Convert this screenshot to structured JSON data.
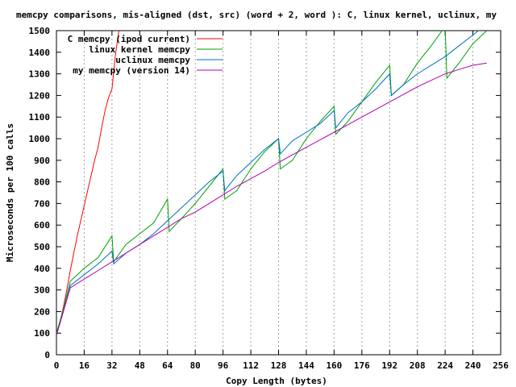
{
  "chart_data": {
    "type": "line",
    "title": "memcpy comparisons, mis-aligned (dst, src) (word + 2, word ): C, linux kernel, uclinux, my",
    "xlabel": "Copy Length (bytes)",
    "ylabel": "Microseconds per 100 calls",
    "xlim": [
      0,
      256
    ],
    "ylim": [
      0,
      1500
    ],
    "x_ticks": [
      0,
      16,
      32,
      48,
      64,
      80,
      96,
      112,
      128,
      144,
      160,
      176,
      192,
      208,
      224,
      240,
      256
    ],
    "y_ticks": [
      0,
      100,
      200,
      300,
      400,
      500,
      600,
      700,
      800,
      900,
      1000,
      1100,
      1200,
      1300,
      1400,
      1500
    ],
    "grid": "vertical dotted",
    "legend_position": "top-left",
    "series": [
      {
        "name": "C memcpy (ipod current)",
        "color": "#ff0000",
        "x": [
          0,
          2,
          4,
          6,
          8,
          10,
          12,
          14,
          16,
          18,
          20,
          22,
          24,
          26,
          28,
          30,
          32,
          34,
          36
        ],
        "y": [
          90,
          150,
          220,
          300,
          390,
          470,
          550,
          620,
          690,
          760,
          830,
          900,
          960,
          1050,
          1130,
          1190,
          1230,
          1390,
          1500
        ]
      },
      {
        "name": "linux kernel memcpy",
        "color": "#00a000",
        "x": [
          0,
          4,
          8,
          16,
          24,
          32,
          33,
          40,
          48,
          56,
          64,
          65,
          72,
          80,
          88,
          96,
          97,
          104,
          112,
          120,
          128,
          129,
          136,
          144,
          152,
          160,
          161,
          168,
          176,
          184,
          192,
          193,
          200,
          208,
          216,
          224,
          225,
          232,
          240,
          248
        ],
        "y": [
          100,
          210,
          340,
          400,
          450,
          550,
          430,
          510,
          560,
          610,
          720,
          570,
          630,
          700,
          780,
          860,
          720,
          760,
          860,
          940,
          1000,
          860,
          900,
          1000,
          1080,
          1150,
          1020,
          1080,
          1170,
          1260,
          1340,
          1200,
          1250,
          1350,
          1430,
          1520,
          1280,
          1350,
          1440,
          1500
        ]
      },
      {
        "name": "uclinux memcpy",
        "color": "#0070c0",
        "x": [
          0,
          4,
          8,
          16,
          24,
          32,
          33,
          40,
          48,
          56,
          64,
          72,
          80,
          88,
          96,
          97,
          104,
          112,
          120,
          128,
          129,
          136,
          144,
          152,
          160,
          161,
          168,
          176,
          184,
          192,
          193,
          200,
          208,
          216,
          224,
          232,
          240,
          248
        ],
        "y": [
          90,
          200,
          320,
          370,
          420,
          480,
          420,
          470,
          510,
          560,
          620,
          680,
          740,
          800,
          850,
          760,
          830,
          890,
          950,
          1000,
          930,
          990,
          1030,
          1070,
          1130,
          1050,
          1120,
          1170,
          1230,
          1300,
          1200,
          1250,
          1300,
          1340,
          1380,
          1430,
          1480,
          1530
        ]
      },
      {
        "name": "my memcpy (version 14)",
        "color": "#b000b0",
        "x": [
          0,
          4,
          8,
          16,
          24,
          32,
          40,
          48,
          56,
          64,
          72,
          80,
          88,
          96,
          104,
          112,
          120,
          128,
          136,
          144,
          152,
          160,
          168,
          176,
          184,
          192,
          200,
          208,
          216,
          224,
          232,
          240,
          248
        ],
        "y": [
          90,
          200,
          310,
          350,
          390,
          430,
          470,
          510,
          550,
          590,
          630,
          660,
          700,
          740,
          780,
          815,
          850,
          890,
          925,
          960,
          995,
          1030,
          1065,
          1100,
          1135,
          1170,
          1205,
          1240,
          1270,
          1300,
          1320,
          1340,
          1350
        ]
      }
    ]
  }
}
